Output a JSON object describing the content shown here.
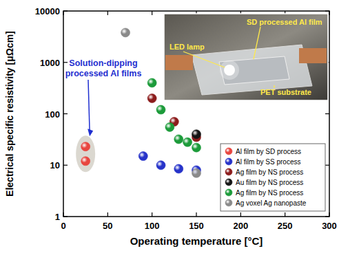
{
  "chart_data": {
    "type": "scatter",
    "x_label": "Operating temperature [°C]",
    "y_label": "Electrical specific resistivity [μΩcm]",
    "xlim": [
      0,
      300
    ],
    "ylim": [
      1,
      10000
    ],
    "xticks": [
      0,
      50,
      100,
      150,
      200,
      250,
      300
    ],
    "yticks": [
      1,
      10,
      100,
      1000,
      10000
    ],
    "log": "y",
    "legend": "lower right",
    "marker": "circle",
    "series": [
      {
        "name": "Al film by SD process",
        "color": "#e8463f",
        "x": [
          25,
          25
        ],
        "values": [
          23,
          12
        ]
      },
      {
        "name": "Al film by SS process",
        "color": "#2633c9",
        "x": [
          90,
          110,
          130,
          150
        ],
        "values": [
          15,
          10,
          8.5,
          8
        ]
      },
      {
        "name": "Ag film by NS process",
        "color": "#8c1c1c",
        "x": [
          100,
          125,
          150
        ],
        "values": [
          200,
          70,
          35
        ]
      },
      {
        "name": "Au film by NS process",
        "color": "#151515",
        "x": [
          150
        ],
        "values": [
          40
        ]
      },
      {
        "name": "Ag film by NS process",
        "color": "#1c9b3a",
        "x": [
          100,
          110,
          120,
          130,
          140,
          150
        ],
        "values": [
          400,
          120,
          55,
          32,
          28,
          22
        ]
      },
      {
        "name": "Ag voxel Ag nanopaste",
        "color": "#8a8a8a",
        "x": [
          70,
          150
        ],
        "values": [
          3800,
          7
        ]
      }
    ],
    "annotations": [
      {
        "text": [
          "Solution-dipping",
          "processed Al films"
        ],
        "color": "#1f2fd0"
      }
    ],
    "inset": {
      "labels": [
        "SD processed Al film",
        "LED lamp",
        "PET substrate"
      ]
    }
  }
}
